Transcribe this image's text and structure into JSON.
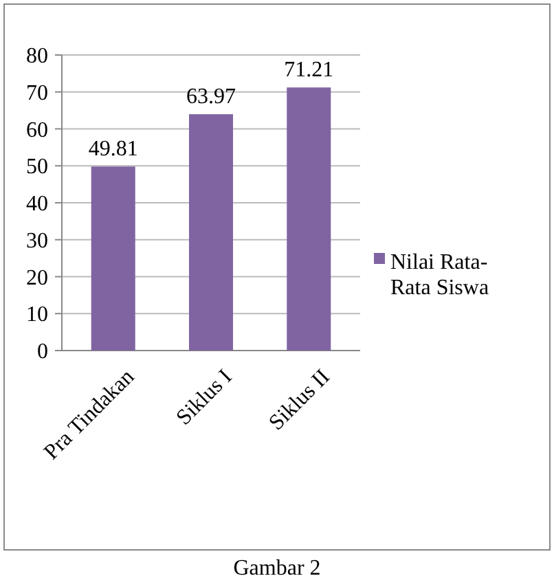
{
  "chart_data": {
    "type": "bar",
    "categories": [
      "Pra Tindakan",
      "Siklus I",
      "Siklus II"
    ],
    "series": [
      {
        "name": "Nilai Rata-Rata Siswa",
        "color": "#8064a2",
        "values": [
          49.81,
          63.97,
          71.21
        ]
      }
    ],
    "ylim": [
      0,
      80
    ],
    "yticks": [
      0,
      10,
      20,
      30,
      40,
      50,
      60,
      70,
      80
    ],
    "grid": "y",
    "legend": "right",
    "data_labels": true,
    "annotations": [
      "Gambar 2"
    ]
  }
}
